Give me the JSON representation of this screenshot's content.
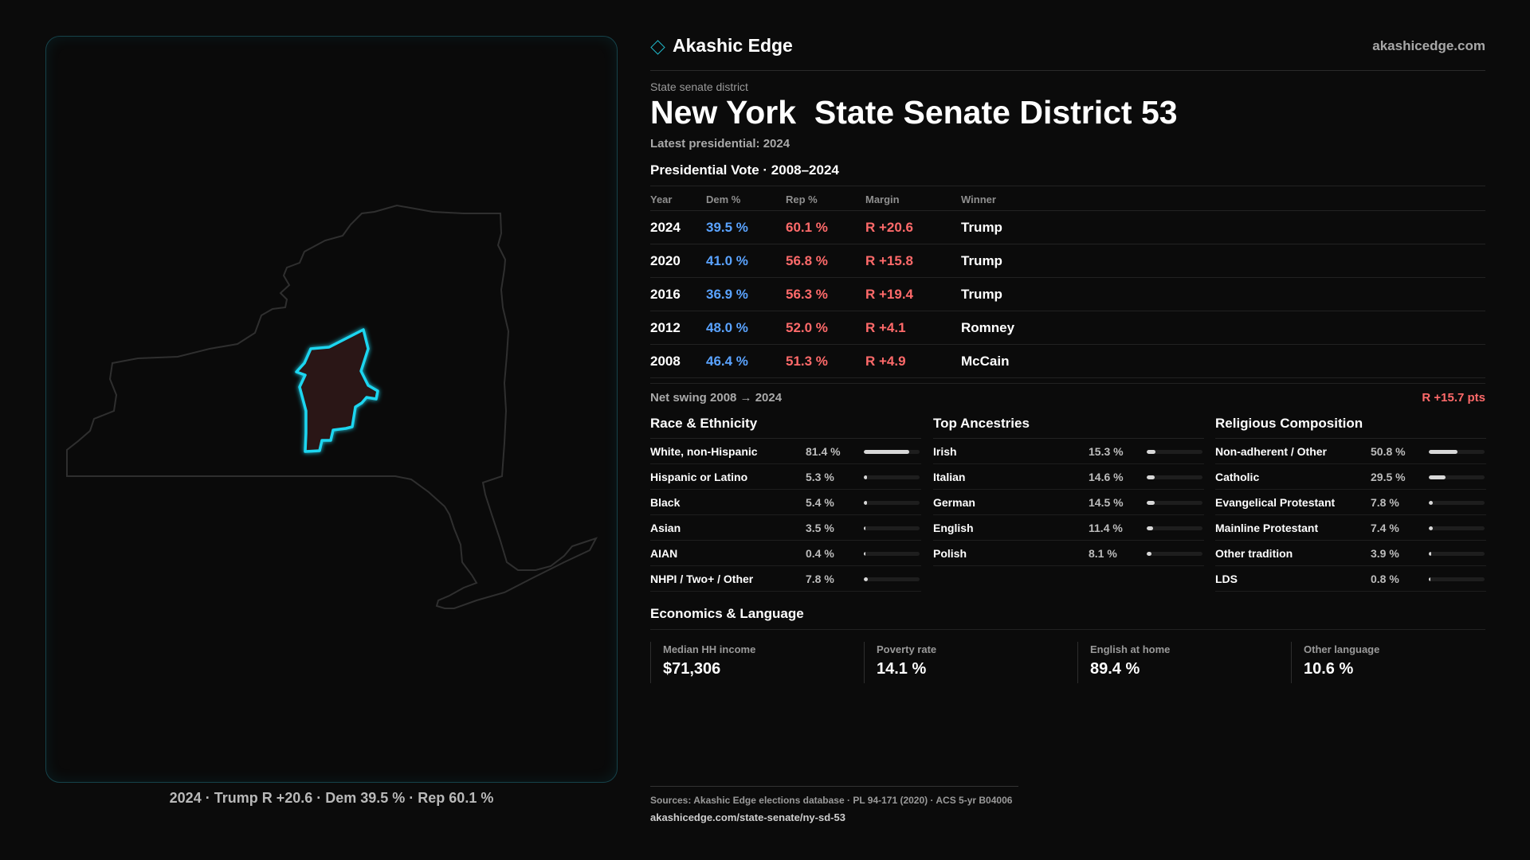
{
  "map": {
    "caption": "2024 · Trump R +20.6 · Dem 39.5 % · Rep 60.1 %"
  },
  "header": {
    "brand": "Akashic Edge",
    "domain": "akashicedge.com"
  },
  "district": {
    "kicker": "State senate district",
    "title": "New York  State Senate District 53",
    "latest": "Latest presidential: 2024"
  },
  "vote": {
    "heading": "Presidential Vote · 2008–2024",
    "columns": [
      "Year",
      "Dem %",
      "Rep %",
      "Margin",
      "Winner"
    ],
    "rows": [
      {
        "year": "2024",
        "dem": "39.5 %",
        "rep": "60.1 %",
        "margin": "R +20.6",
        "winner": "Trump"
      },
      {
        "year": "2020",
        "dem": "41.0 %",
        "rep": "56.8 %",
        "margin": "R +15.8",
        "winner": "Trump"
      },
      {
        "year": "2016",
        "dem": "36.9 %",
        "rep": "56.3 %",
        "margin": "R +19.4",
        "winner": "Trump"
      },
      {
        "year": "2012",
        "dem": "48.0 %",
        "rep": "52.0 %",
        "margin": "R +4.1",
        "winner": "Romney"
      },
      {
        "year": "2008",
        "dem": "46.4 %",
        "rep": "51.3 %",
        "margin": "R +4.9",
        "winner": "McCain"
      }
    ],
    "swing_label": "Net swing 2008 → 2024",
    "swing_value": "R +15.7 pts"
  },
  "race": {
    "heading": "Race & Ethnicity",
    "items": [
      {
        "label": "White, non-Hispanic",
        "value": "81.4 %",
        "pct": 81.4
      },
      {
        "label": "Hispanic or Latino",
        "value": "5.3 %",
        "pct": 5.3
      },
      {
        "label": "Black",
        "value": "5.4 %",
        "pct": 5.4
      },
      {
        "label": "Asian",
        "value": "3.5 %",
        "pct": 3.5
      },
      {
        "label": "AIAN",
        "value": "0.4 %",
        "pct": 0.4
      },
      {
        "label": "NHPI / Two+ / Other",
        "value": "7.8 %",
        "pct": 7.8
      }
    ]
  },
  "ancestry": {
    "heading": "Top Ancestries",
    "items": [
      {
        "label": "Irish",
        "value": "15.3 %",
        "pct": 15.3
      },
      {
        "label": "Italian",
        "value": "14.6 %",
        "pct": 14.6
      },
      {
        "label": "German",
        "value": "14.5 %",
        "pct": 14.5
      },
      {
        "label": "English",
        "value": "11.4 %",
        "pct": 11.4
      },
      {
        "label": "Polish",
        "value": "8.1 %",
        "pct": 8.1
      }
    ]
  },
  "religion": {
    "heading": "Religious Composition",
    "items": [
      {
        "label": "Non-adherent / Other",
        "value": "50.8 %",
        "pct": 50.8
      },
      {
        "label": "Catholic",
        "value": "29.5 %",
        "pct": 29.5
      },
      {
        "label": "Evangelical Protestant",
        "value": "7.8 %",
        "pct": 7.8
      },
      {
        "label": "Mainline Protestant",
        "value": "7.4 %",
        "pct": 7.4
      },
      {
        "label": "Other tradition",
        "value": "3.9 %",
        "pct": 3.9
      },
      {
        "label": "LDS",
        "value": "0.8 %",
        "pct": 0.8
      }
    ]
  },
  "economics": {
    "heading": "Economics & Language",
    "items": [
      {
        "label": "Median HH income",
        "value": "$71,306"
      },
      {
        "label": "Poverty rate",
        "value": "14.1 %"
      },
      {
        "label": "English at home",
        "value": "89.4 %"
      },
      {
        "label": "Other language",
        "value": "10.6 %"
      }
    ]
  },
  "footer": {
    "sources": "Sources: Akashic Edge elections database · PL 94-171 (2020) · ACS 5-yr B04006",
    "url": "akashicedge.com/state-senate/ny-sd-53"
  },
  "colors": {
    "dem": "#5aa3ff",
    "rep": "#ff6a6a",
    "accent": "#1fb6c8",
    "district_fill": "#2a1416"
  }
}
